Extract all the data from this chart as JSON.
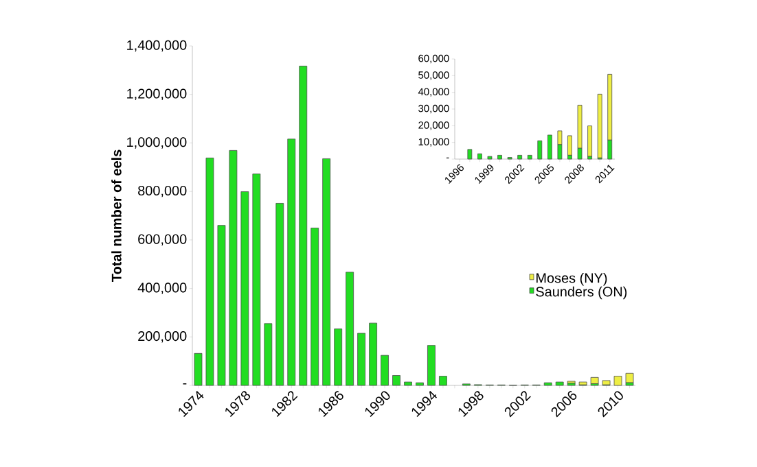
{
  "chart_data": [
    {
      "type": "bar",
      "stacked": true,
      "ylabel": "Total number of eels",
      "categories": [
        "1974",
        null,
        null,
        null,
        "1978",
        null,
        null,
        null,
        "1982",
        null,
        null,
        null,
        "1986",
        null,
        null,
        null,
        "1990",
        null,
        null,
        null,
        "1994",
        null,
        null,
        null,
        "1998",
        null,
        null,
        null,
        "2002",
        null,
        null,
        null,
        "2006",
        null,
        null,
        null,
        "2010",
        null
      ],
      "series": [
        {
          "name": "Saunders (ON)",
          "color": "#22dd22",
          "values": [
            132000,
            938000,
            660000,
            969000,
            799000,
            872000,
            255000,
            751000,
            1016000,
            1317000,
            649000,
            935000,
            233000,
            467000,
            215000,
            257000,
            124000,
            41000,
            14000,
            11000,
            165000,
            38000,
            0,
            6000,
            3000,
            2000,
            2000,
            1000,
            2000,
            2000,
            11000,
            14000,
            9000,
            2000,
            7000,
            2000,
            null,
            11000
          ]
        },
        {
          "name": "Moses (NY)",
          "color": "#eeee44",
          "values": [
            null,
            null,
            null,
            null,
            null,
            null,
            null,
            null,
            null,
            null,
            null,
            null,
            null,
            null,
            null,
            null,
            null,
            null,
            null,
            null,
            null,
            null,
            null,
            null,
            null,
            null,
            null,
            null,
            null,
            null,
            null,
            null,
            8000,
            12000,
            26000,
            18000,
            38000,
            39000
          ]
        }
      ],
      "ylim": [
        0,
        1400000
      ],
      "yticks": [
        {
          "value": 0,
          "label": "-"
        },
        {
          "value": 200000,
          "label": "200,000"
        },
        {
          "value": 400000,
          "label": "400,000"
        },
        {
          "value": 600000,
          "label": "600,000"
        },
        {
          "value": 800000,
          "label": "800,000"
        },
        {
          "value": 1000000,
          "label": "1,000,000"
        },
        {
          "value": 1200000,
          "label": "1,200,000"
        },
        {
          "value": 1400000,
          "label": "1,400,000"
        }
      ],
      "legend": "right"
    },
    {
      "type": "bar",
      "stacked": true,
      "categories": [
        "1996",
        null,
        null,
        "1999",
        null,
        null,
        "2002",
        null,
        null,
        "2005",
        null,
        null,
        "2008",
        null,
        null,
        "2011"
      ],
      "series": [
        {
          "color": "#22dd22",
          "values": [
            0,
            5800,
            3200,
            1600,
            2300,
            1000,
            2300,
            2300,
            11000,
            14400,
            8700,
            2300,
            6500,
            1600,
            700,
            11400
          ]
        },
        {
          "color": "#eeee44",
          "values": [
            null,
            null,
            null,
            null,
            null,
            null,
            null,
            null,
            null,
            null,
            8200,
            11700,
            25800,
            18300,
            38200,
            39400
          ]
        }
      ],
      "ylim": [
        0,
        60000
      ],
      "yticks": [
        {
          "value": 0,
          "label": "-"
        },
        {
          "value": 10000,
          "label": "10,000"
        },
        {
          "value": 20000,
          "label": "20,000"
        },
        {
          "value": 30000,
          "label": "30,000"
        },
        {
          "value": 40000,
          "label": "40,000"
        },
        {
          "value": 50000,
          "label": "50,000"
        },
        {
          "value": 60000,
          "label": "60,000"
        }
      ]
    }
  ]
}
